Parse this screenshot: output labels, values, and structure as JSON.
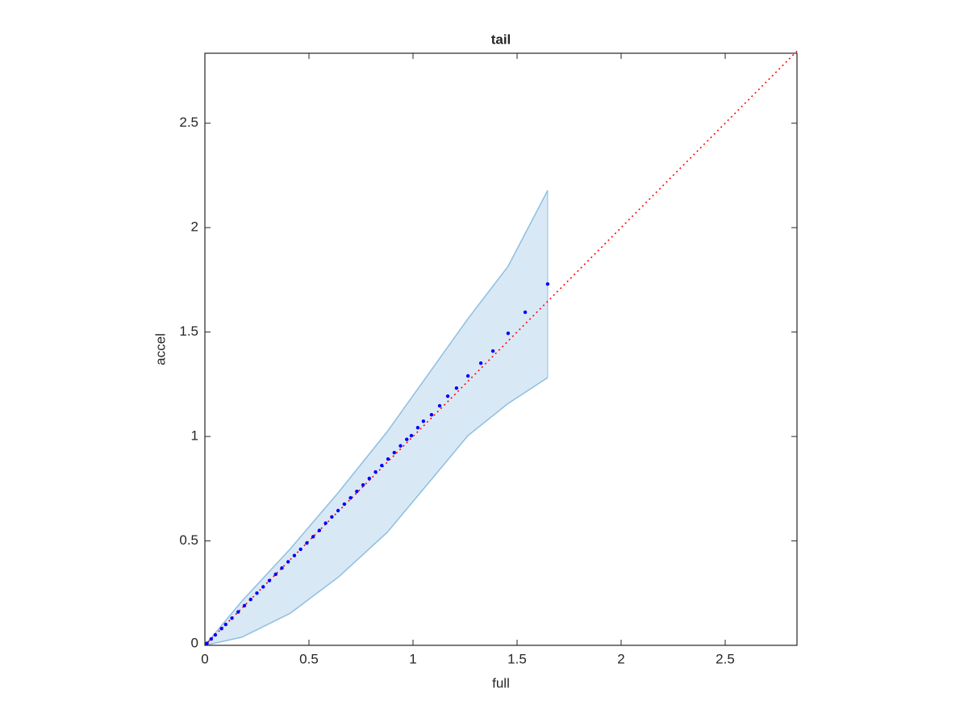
{
  "chart_data": {
    "type": "scatter",
    "title": "tail",
    "x_label": "full",
    "y_label": "accel",
    "xlim": [
      0,
      2.845
    ],
    "ylim": [
      0,
      2.835
    ],
    "xticks": [
      0,
      0.5,
      1,
      1.5,
      2,
      2.5
    ],
    "yticks": [
      0,
      0.5,
      1,
      1.5,
      2,
      2.5
    ],
    "color": "#0000ff",
    "x": [
      0.01,
      0.03,
      0.05,
      0.08,
      0.1,
      0.13,
      0.16,
      0.19,
      0.22,
      0.25,
      0.28,
      0.31,
      0.34,
      0.37,
      0.4,
      0.43,
      0.46,
      0.49,
      0.52,
      0.55,
      0.58,
      0.61,
      0.64,
      0.67,
      0.7,
      0.73,
      0.76,
      0.79,
      0.82,
      0.85,
      0.88,
      0.91,
      0.94,
      0.97,
      0.992,
      1.023,
      1.05,
      1.089,
      1.128,
      1.167,
      1.209,
      1.264,
      1.326,
      1.384,
      1.457,
      1.539,
      1.647
    ],
    "values": [
      0.01,
      0.03,
      0.05,
      0.08,
      0.1,
      0.13,
      0.16,
      0.19,
      0.22,
      0.25,
      0.28,
      0.31,
      0.34,
      0.37,
      0.4,
      0.43,
      0.46,
      0.49,
      0.52,
      0.55,
      0.585,
      0.615,
      0.645,
      0.676,
      0.706,
      0.737,
      0.768,
      0.799,
      0.83,
      0.861,
      0.892,
      0.923,
      0.955,
      0.986,
      1.004,
      1.042,
      1.073,
      1.104,
      1.147,
      1.193,
      1.232,
      1.29,
      1.351,
      1.409,
      1.494,
      1.595,
      1.73
    ],
    "band": {
      "color": "#d9e8f5",
      "edge_color": "#8dbfe0",
      "x": [
        0,
        0.178,
        0.411,
        0.643,
        0.876,
        1.07,
        1.264,
        1.457,
        1.647
      ],
      "upper": [
        0,
        0.212,
        0.463,
        0.734,
        1.023,
        1.293,
        1.564,
        1.815,
        2.178
      ],
      "lower": [
        0,
        0.039,
        0.154,
        0.328,
        0.541,
        0.772,
        1.004,
        1.158,
        1.282
      ]
    },
    "reference_line": {
      "color": "#ff0000",
      "x": [
        0,
        2.845
      ],
      "y": [
        0,
        2.845
      ]
    }
  }
}
